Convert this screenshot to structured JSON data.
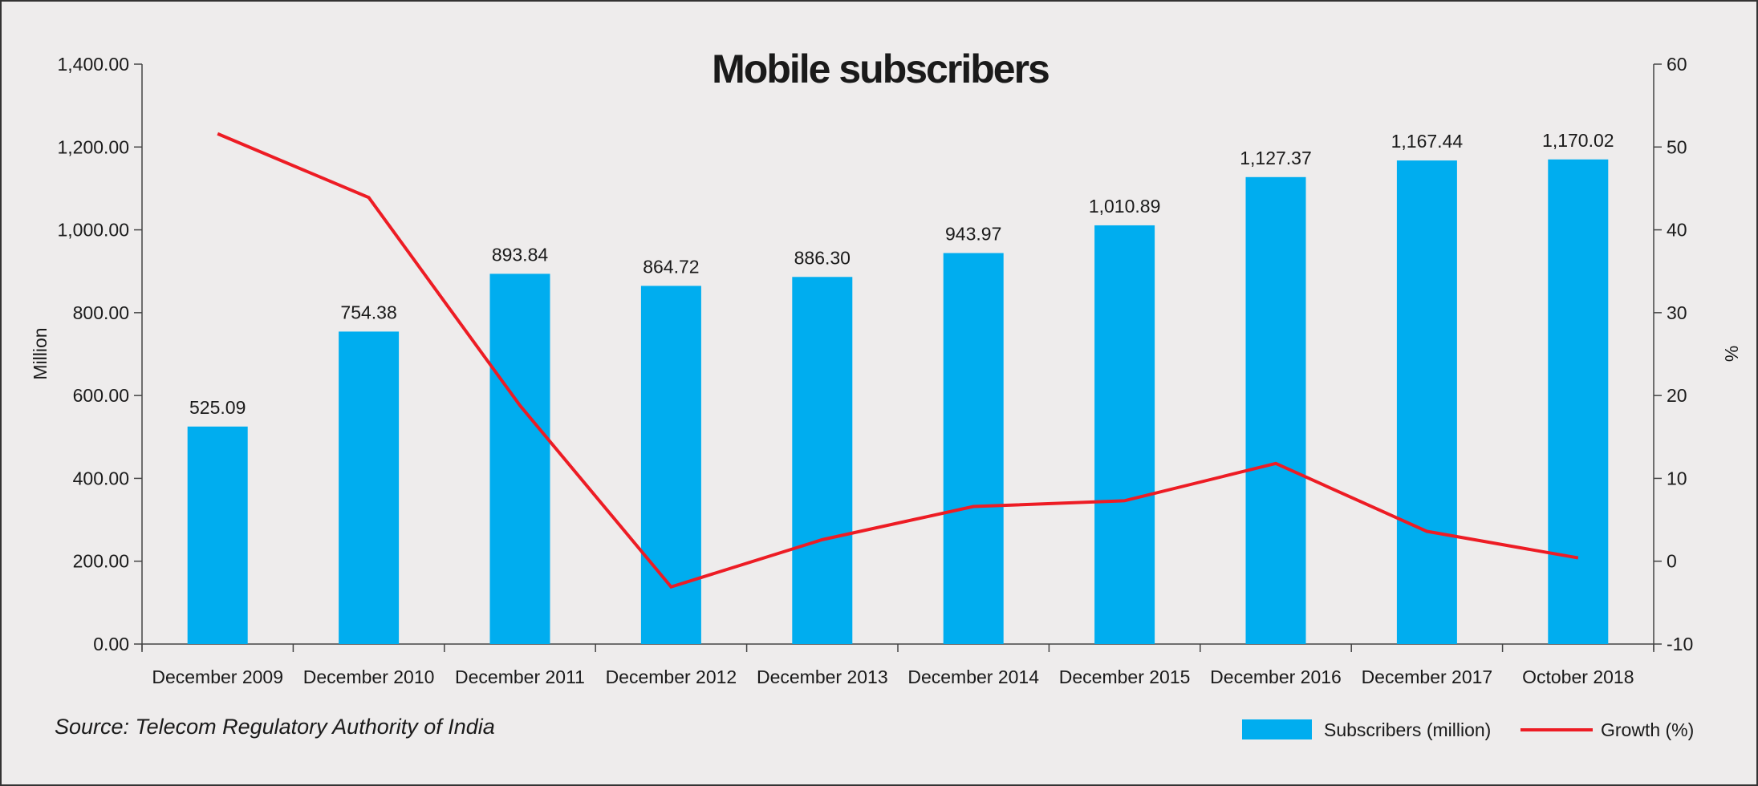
{
  "chart_data": {
    "type": "bar+line",
    "title": "Mobile subscribers",
    "categories": [
      "December 2009",
      "December 2010",
      "December 2011",
      "December 2012",
      "December 2013",
      "December 2014",
      "December 2015",
      "December 2016",
      "December 2017",
      "October 2018"
    ],
    "series": [
      {
        "name": "Subscribers (million)",
        "type": "bar",
        "axis": "left",
        "color": "#00adef",
        "values": [
          525.09,
          754.38,
          893.84,
          864.72,
          886.3,
          943.97,
          1010.89,
          1127.37,
          1167.44,
          1170.02
        ],
        "labels": [
          "525.09",
          "754.38",
          "893.84",
          "864.72",
          "886.30",
          "943.97",
          "1,010.89",
          "1,127.37",
          "1,167.44",
          "1,170.02"
        ]
      },
      {
        "name": "Growth (%)",
        "type": "line",
        "axis": "right",
        "color": "#ed1c24",
        "values": [
          51.6,
          43.9,
          18.8,
          -3.1,
          2.6,
          6.6,
          7.3,
          11.8,
          3.6,
          0.4
        ]
      }
    ],
    "ylabel_left": "Million",
    "ylabel_right": "%",
    "ylim_left": [
      0,
      1400
    ],
    "ylim_right": [
      -10,
      60
    ],
    "yticks_left": [
      "0.00",
      "200.00",
      "400.00",
      "600.00",
      "800.00",
      "1,000.00",
      "1,200.00",
      "1,400.00"
    ],
    "yticks_right": [
      "-10",
      "0",
      "10",
      "20",
      "30",
      "40",
      "50",
      "60"
    ],
    "grid": false,
    "legend": "bottom-right",
    "source": "Source: Telecom Regulatory Authority of India"
  }
}
